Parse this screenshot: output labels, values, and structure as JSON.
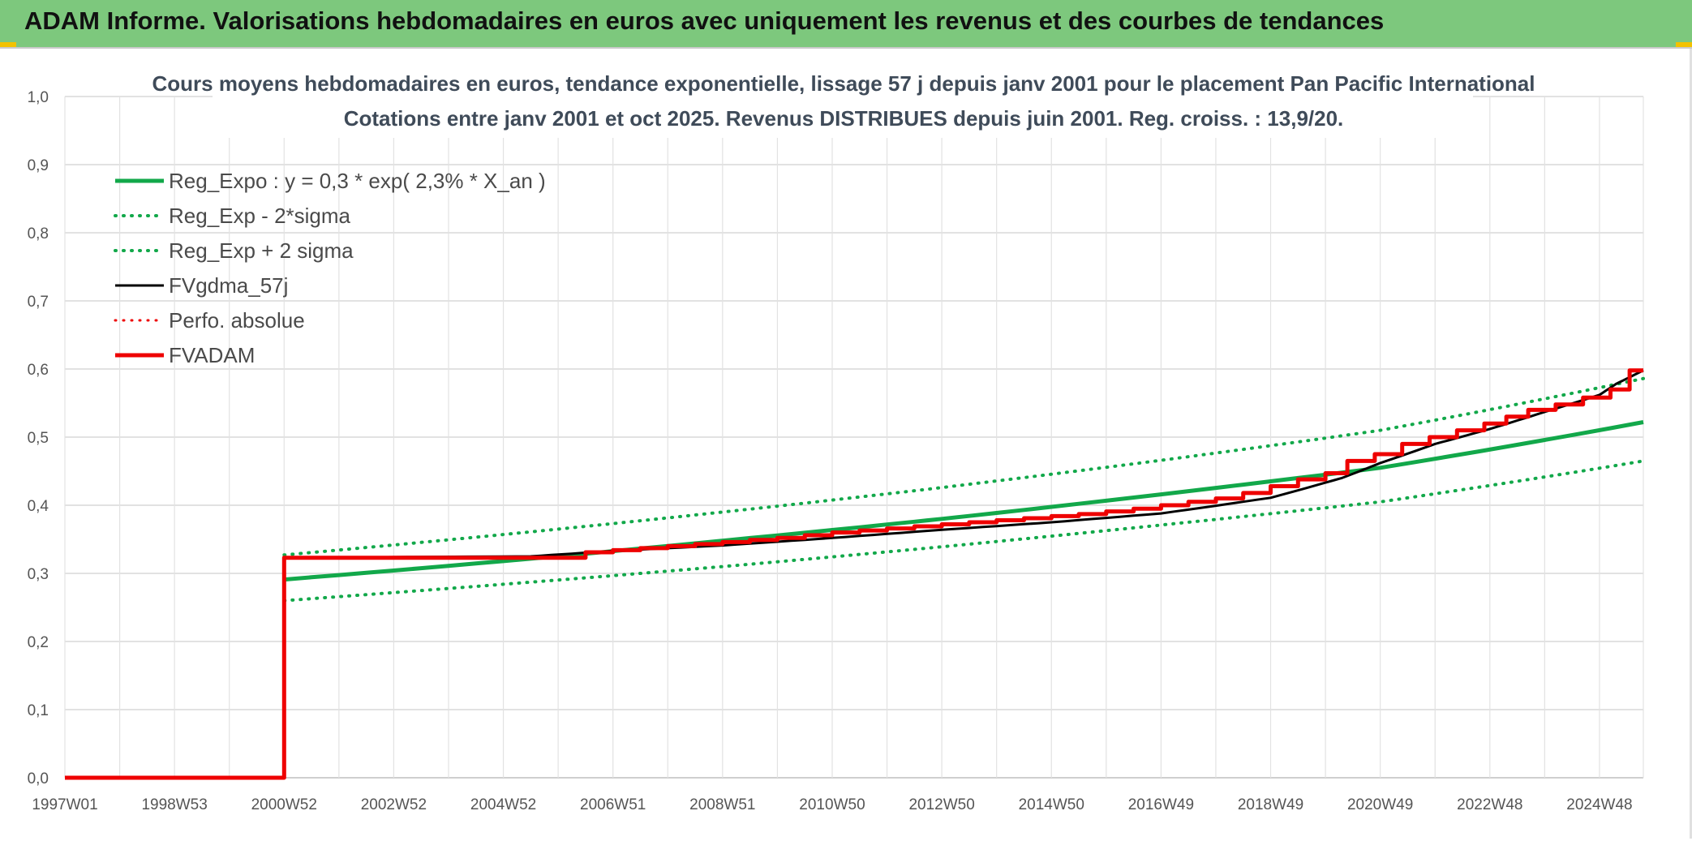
{
  "banner": {
    "title": "ADAM Informe. Valorisations hebdomadaires en euros avec uniquement les revenus et des courbes de tendances"
  },
  "colors": {
    "banner_bg": "#7dc87d",
    "green": "#12a84a",
    "red": "#ee0000",
    "black": "#000000",
    "corner": "#f2c200"
  },
  "chart_data": {
    "type": "line",
    "title": "Cours moyens hebdomadaires en euros, tendance exponentielle, lissage 57 j depuis janv 2001 pour le placement Pan Pacific International",
    "subtitle": "Cotations entre janv 2001 et oct 2025. Revenus DISTRIBUES depuis juin 2001. Reg. croiss. : 13,9/20.",
    "ylim": [
      0,
      1
    ],
    "xlim": [
      1997.0,
      2025.8
    ],
    "y_ticks": [
      "0,0",
      "0,1",
      "0,2",
      "0,3",
      "0,4",
      "0,5",
      "0,6",
      "0,7",
      "0,8",
      "0,9",
      "1,0"
    ],
    "x_ticks": [
      {
        "label": "1997W01",
        "x": 1997.0
      },
      {
        "label": "1998W53",
        "x": 1999.0
      },
      {
        "label": "2000W52",
        "x": 2001.0
      },
      {
        "label": "2002W52",
        "x": 2003.0
      },
      {
        "label": "2004W52",
        "x": 2005.0
      },
      {
        "label": "2006W51",
        "x": 2007.0
      },
      {
        "label": "2008W51",
        "x": 2009.0
      },
      {
        "label": "2010W50",
        "x": 2011.0
      },
      {
        "label": "2012W50",
        "x": 2013.0
      },
      {
        "label": "2014W50",
        "x": 2015.0
      },
      {
        "label": "2016W49",
        "x": 2017.0
      },
      {
        "label": "2018W49",
        "x": 2019.0
      },
      {
        "label": "2020W49",
        "x": 2021.0
      },
      {
        "label": "2022W48",
        "x": 2023.0
      },
      {
        "label": "2024W48",
        "x": 2025.0
      }
    ],
    "legend_position": "top-left",
    "series": [
      {
        "name": "Reg_Expo : y = 0,3 * exp( 2,3% *  X_an )",
        "color": "#12a84a",
        "style": "solid",
        "width": 5,
        "x": [
          2001.0,
          2005,
          2009,
          2013,
          2017,
          2021,
          2025.8
        ],
        "y": [
          0.291,
          0.318,
          0.348,
          0.38,
          0.416,
          0.455,
          0.522
        ]
      },
      {
        "name": "Reg_Exp - 2*sigma",
        "color": "#12a84a",
        "style": "dotted",
        "width": 4,
        "x": [
          2001.0,
          2005,
          2009,
          2013,
          2017,
          2021,
          2025.8
        ],
        "y": [
          0.26,
          0.284,
          0.31,
          0.339,
          0.371,
          0.405,
          0.465
        ]
      },
      {
        "name": "Reg_Exp + 2 sigma",
        "color": "#12a84a",
        "style": "dotted",
        "width": 4,
        "x": [
          2001.0,
          2005,
          2009,
          2013,
          2017,
          2021,
          2025.8
        ],
        "y": [
          0.327,
          0.357,
          0.39,
          0.426,
          0.466,
          0.51,
          0.586
        ]
      },
      {
        "name": "FVgdma_57j",
        "color": "#000000",
        "style": "solid",
        "width": 3,
        "x": [
          2001.0,
          2005.5,
          2007,
          2009,
          2011,
          2013,
          2015,
          2017,
          2019,
          2020.3,
          2021.0,
          2022,
          2023,
          2024,
          2025.0,
          2025.3,
          2025.8
        ],
        "y": [
          0.323,
          0.325,
          0.333,
          0.341,
          0.352,
          0.364,
          0.375,
          0.388,
          0.411,
          0.44,
          0.462,
          0.49,
          0.512,
          0.537,
          0.562,
          0.578,
          0.598
        ]
      },
      {
        "name": "Perfo. absolue",
        "color": "#ee0000",
        "style": "dotted",
        "width": 3,
        "x": [],
        "y": []
      },
      {
        "name": "FVADAM",
        "color": "#ee0000",
        "style": "step",
        "width": 5,
        "x": [
          1997.0,
          2001.0,
          2001.0,
          2005.5,
          2006.5,
          2007.0,
          2007.5,
          2008.0,
          2008.5,
          2009.0,
          2009.5,
          2010.0,
          2010.5,
          2011.0,
          2011.5,
          2012.0,
          2012.5,
          2013.0,
          2013.5,
          2014.0,
          2014.5,
          2015.0,
          2015.5,
          2016.0,
          2016.5,
          2017.0,
          2017.5,
          2018.0,
          2018.5,
          2019.0,
          2019.5,
          2020.0,
          2020.4,
          2020.9,
          2021.4,
          2021.9,
          2022.4,
          2022.9,
          2023.3,
          2023.7,
          2024.2,
          2024.7,
          2025.2,
          2025.55,
          2025.8
        ],
        "y": [
          0.0,
          0.0,
          0.323,
          0.323,
          0.331,
          0.334,
          0.337,
          0.34,
          0.343,
          0.346,
          0.349,
          0.352,
          0.356,
          0.36,
          0.363,
          0.366,
          0.369,
          0.372,
          0.375,
          0.378,
          0.381,
          0.384,
          0.387,
          0.391,
          0.395,
          0.4,
          0.405,
          0.41,
          0.418,
          0.428,
          0.438,
          0.447,
          0.465,
          0.475,
          0.49,
          0.5,
          0.51,
          0.52,
          0.53,
          0.54,
          0.548,
          0.558,
          0.57,
          0.598,
          0.598
        ]
      }
    ]
  }
}
